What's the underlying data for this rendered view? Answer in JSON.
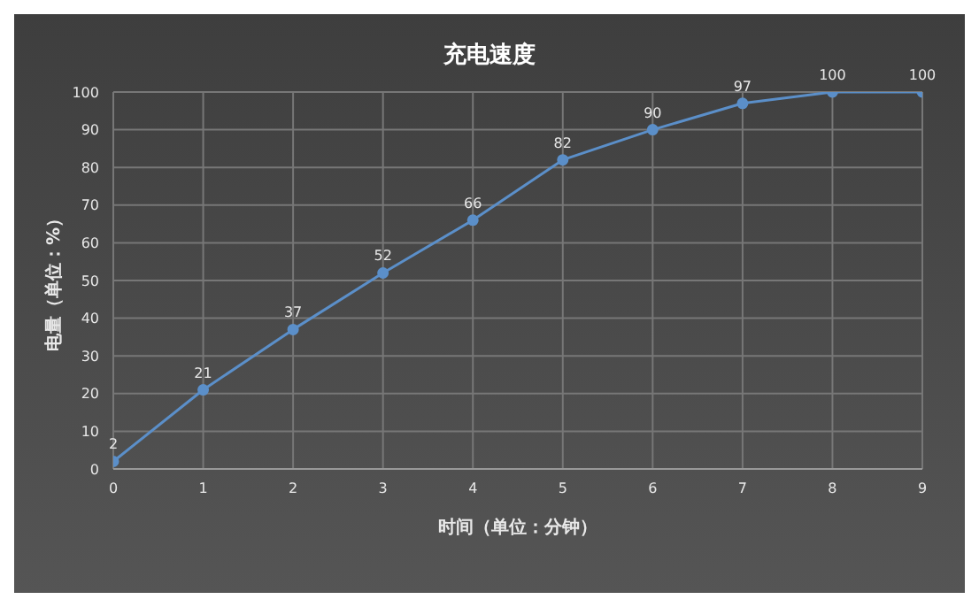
{
  "chart_data": {
    "type": "line",
    "title": "充电速度",
    "xlabel": "时间（单位：分钟）",
    "ylabel": "电量（单位：%）",
    "x": [
      0,
      1,
      2,
      3,
      4,
      5,
      6,
      7,
      8,
      9
    ],
    "series": [
      {
        "color": "#5b8fc9",
        "values": [
          2,
          21,
          37,
          52,
          66,
          82,
          90,
          97,
          100,
          100
        ]
      }
    ],
    "xlim": [
      0,
      9
    ],
    "xticks": [
      0,
      1,
      2,
      3,
      4,
      5,
      6,
      7,
      8,
      9
    ],
    "ylim": [
      0,
      100
    ],
    "yticks": [
      0,
      10,
      20,
      30,
      40,
      50,
      60,
      70,
      80,
      90,
      100
    ],
    "grid": true,
    "data_labels": true,
    "marker": "circle",
    "legend": false
  }
}
